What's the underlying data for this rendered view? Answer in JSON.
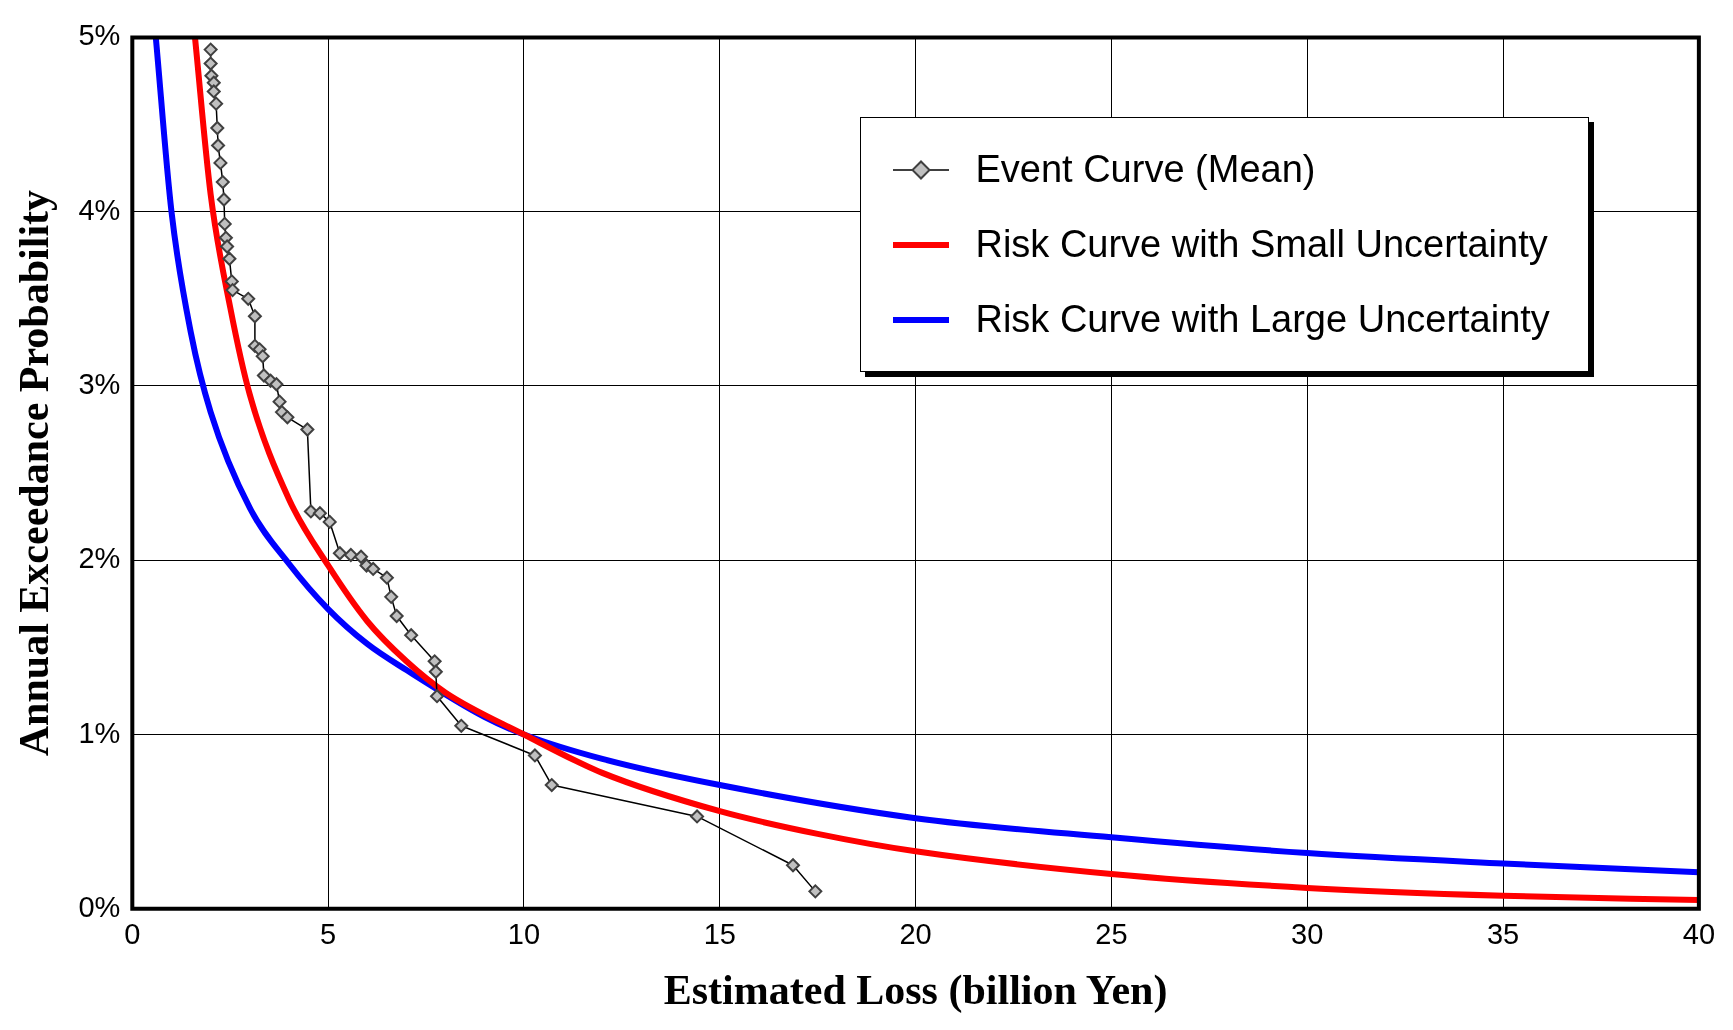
{
  "chart_data": {
    "type": "line",
    "xlabel": "Estimated Loss (billion Yen)",
    "ylabel": "Annual Exceedance Probability",
    "xlim": [
      0,
      40
    ],
    "xticks": [
      0,
      5,
      10,
      15,
      20,
      25,
      30,
      35,
      40
    ],
    "ylim": [
      0,
      5
    ],
    "yticks": [
      {
        "value": 0,
        "label": "0%"
      },
      {
        "value": 1,
        "label": "1%"
      },
      {
        "value": 2,
        "label": "2%"
      },
      {
        "value": 3,
        "label": "3%"
      },
      {
        "value": 4,
        "label": "4%"
      },
      {
        "value": 5,
        "label": "5%"
      }
    ],
    "grid": true,
    "legend": "top right",
    "series": [
      {
        "name": "Event Curve (Mean)",
        "color": "#000000",
        "marker": "diamond",
        "x": [
          2.0,
          2.0,
          2.02,
          2.08,
          2.08,
          2.14,
          2.17,
          2.19,
          2.25,
          2.31,
          2.34,
          2.36,
          2.39,
          2.42,
          2.48,
          2.54,
          2.56,
          2.96,
          3.13,
          3.13,
          3.25,
          3.33,
          3.36,
          3.53,
          3.68,
          3.76,
          3.82,
          3.96,
          4.47,
          4.56,
          4.79,
          5.04,
          5.3,
          5.58,
          5.84,
          5.98,
          6.15,
          6.5,
          6.61,
          6.75,
          7.12,
          7.72,
          7.75,
          7.78,
          8.4,
          10.28,
          10.71,
          14.42,
          16.87,
          17.44
        ],
        "values": [
          4.93,
          4.85,
          4.78,
          4.74,
          4.69,
          4.62,
          4.48,
          4.38,
          4.28,
          4.17,
          4.07,
          3.93,
          3.85,
          3.8,
          3.73,
          3.6,
          3.55,
          3.5,
          3.4,
          3.23,
          3.21,
          3.17,
          3.06,
          3.03,
          3.01,
          2.91,
          2.85,
          2.82,
          2.75,
          2.28,
          2.27,
          2.22,
          2.04,
          2.03,
          2.02,
          1.97,
          1.95,
          1.9,
          1.79,
          1.68,
          1.57,
          1.42,
          1.36,
          1.22,
          1.05,
          0.88,
          0.71,
          0.53,
          0.25,
          0.1
        ]
      },
      {
        "name": "Risk Curve with Small Uncertainty",
        "color": "#ff0000",
        "marker": "none",
        "x": [
          1.6,
          2,
          2.5,
          3,
          4,
          5,
          6,
          7,
          8,
          10,
          12,
          15,
          17.5,
          20,
          25,
          30,
          35,
          40
        ],
        "values": [
          5,
          4.1,
          3.45,
          2.95,
          2.35,
          1.97,
          1.65,
          1.42,
          1.24,
          1.0,
          0.78,
          0.56,
          0.43,
          0.33,
          0.2,
          0.12,
          0.075,
          0.05
        ]
      },
      {
        "name": "Risk Curve with Large Uncertainty",
        "color": "#0000ff",
        "marker": "none",
        "x": [
          0.6,
          1,
          1.5,
          2,
          3,
          4,
          5,
          6,
          7,
          9,
          10,
          12,
          15,
          20,
          25,
          30,
          35,
          40
        ],
        "values": [
          5,
          4.0,
          3.3,
          2.85,
          2.3,
          1.98,
          1.72,
          1.52,
          1.37,
          1.1,
          1.0,
          0.86,
          0.71,
          0.52,
          0.41,
          0.32,
          0.26,
          0.21
        ]
      }
    ]
  }
}
